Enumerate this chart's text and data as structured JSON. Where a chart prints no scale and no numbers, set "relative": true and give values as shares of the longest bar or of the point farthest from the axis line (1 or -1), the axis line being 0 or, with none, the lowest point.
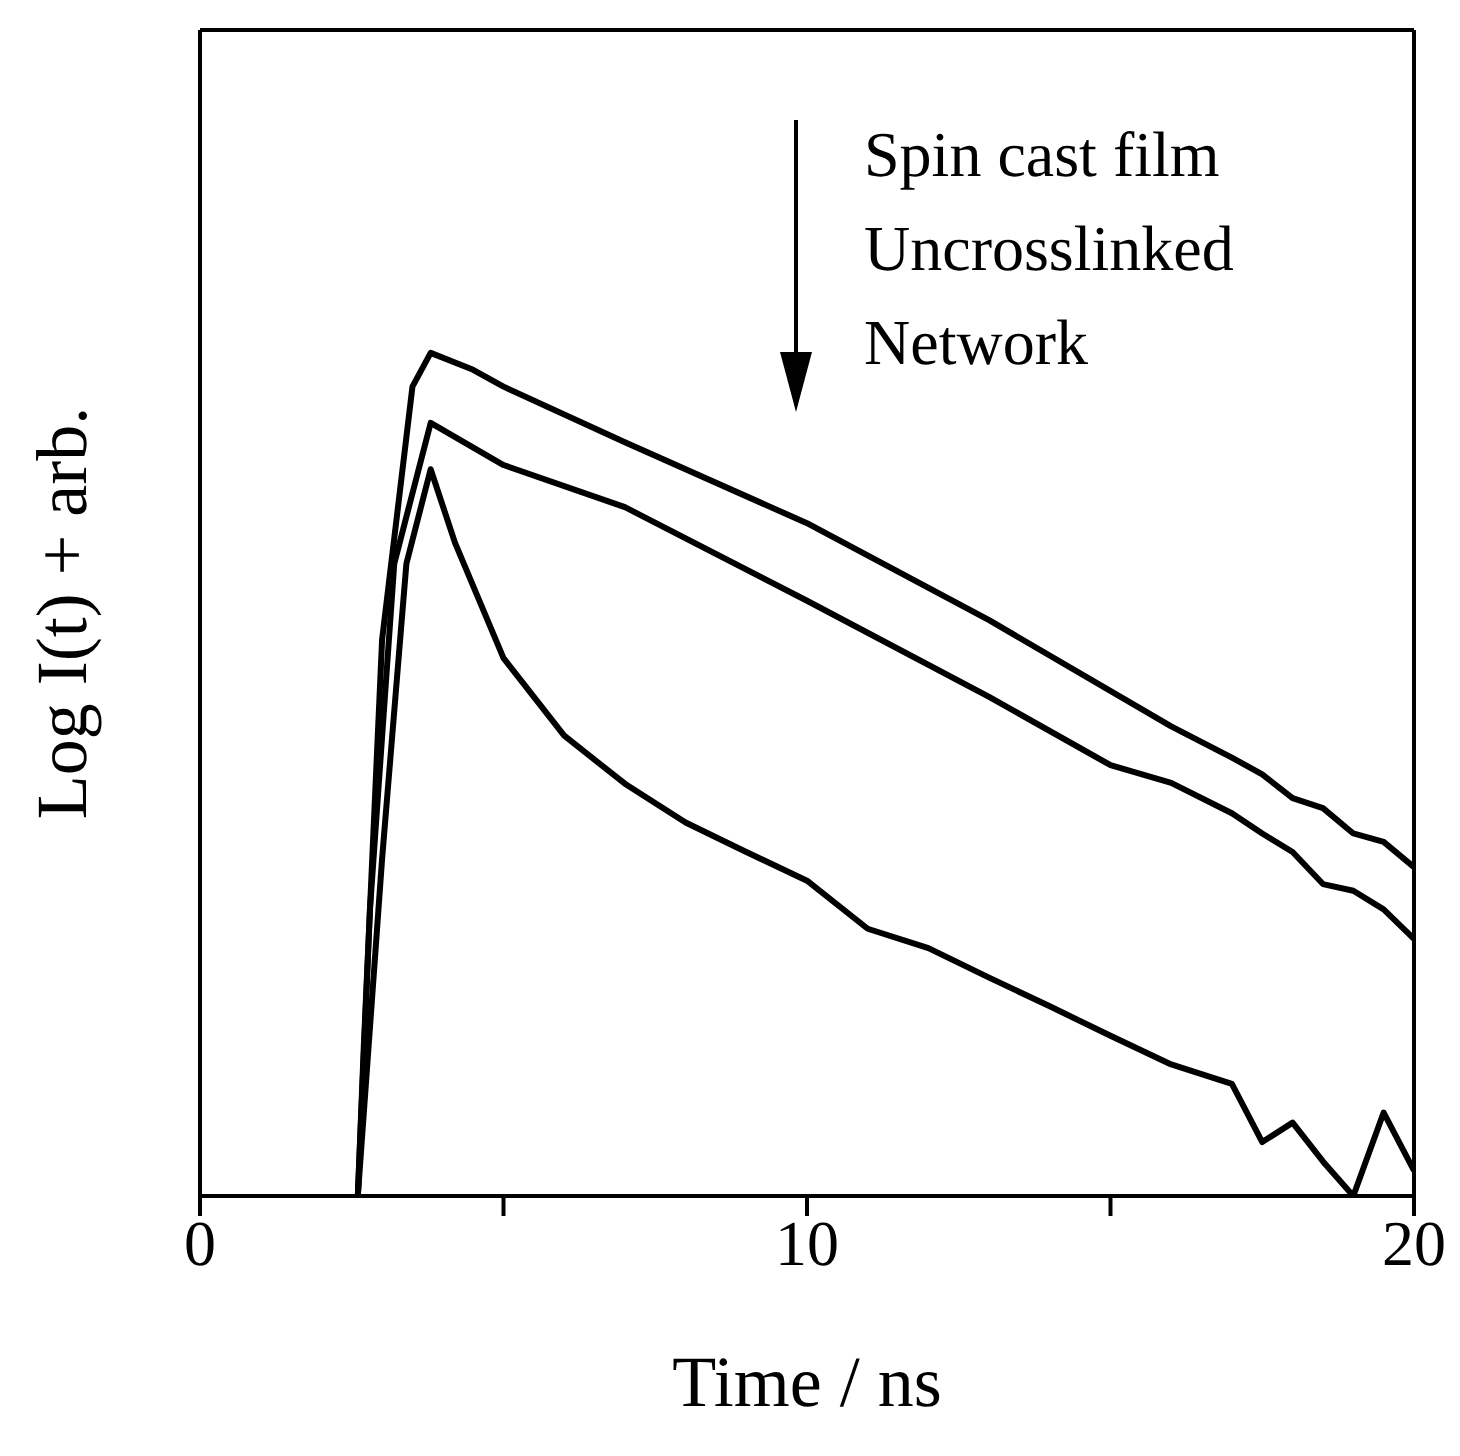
{
  "chart_data": {
    "type": "line",
    "relative": true,
    "xlabel": "Time / ns",
    "ylabel": "Log I(t) + arb.",
    "xlim": [
      0,
      20
    ],
    "xticks": [
      0,
      {
        "value": 5,
        "label": null
      },
      10,
      {
        "value": 15,
        "label": null
      },
      20
    ],
    "marker": "none",
    "annotations": [
      "Spin cast film",
      "Uncrosslinked",
      "Network"
    ],
    "series": [
      {
        "color": "#000000",
        "x": [
          2.6,
          2.7,
          3.0,
          3.5,
          3.8,
          4.5,
          5,
          7,
          10,
          13,
          16,
          17,
          17.5,
          18,
          18.5,
          19,
          19.5,
          20
        ],
        "values": [
          0,
          0.18,
          0.66,
          0.96,
          1.0,
          0.98,
          0.96,
          0.894,
          0.798,
          0.683,
          0.557,
          0.52,
          0.5,
          0.472,
          0.46,
          0.43,
          0.42,
          0.39
        ]
      },
      {
        "color": "#000000",
        "x": [
          2.6,
          2.8,
          3.2,
          3.8,
          5,
          7,
          10,
          13,
          15,
          16,
          17,
          17.5,
          18,
          18.5,
          19,
          19.5,
          20
        ],
        "values": [
          0,
          0.34,
          0.75,
          0.917,
          0.867,
          0.817,
          0.706,
          0.592,
          0.511,
          0.49,
          0.454,
          0.43,
          0.408,
          0.37,
          0.362,
          0.34,
          0.305
        ]
      },
      {
        "color": "#000000",
        "x": [
          2.6,
          3.0,
          3.4,
          3.8,
          4.2,
          5,
          6,
          7,
          8,
          9,
          10,
          11,
          12,
          13,
          14,
          15,
          16,
          17,
          17.5,
          18,
          18.5,
          19,
          19.5,
          20
        ],
        "values": [
          0,
          0.4,
          0.75,
          0.862,
          0.775,
          0.638,
          0.546,
          0.489,
          0.443,
          0.408,
          0.374,
          0.317,
          0.294,
          0.259,
          0.225,
          0.19,
          0.156,
          0.133,
          0.064,
          0.087,
          0.041,
          0,
          0.099,
          0.03
        ]
      }
    ]
  }
}
